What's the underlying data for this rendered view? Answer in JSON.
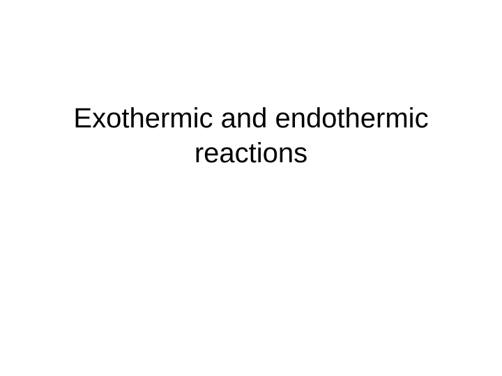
{
  "slide": {
    "title_line1": "Exothermic and endothermic",
    "title_line2": "reactions",
    "title_fontsize": 40,
    "title_color": "#000000",
    "background_color": "#ffffff",
    "font_family": "Arial, Helvetica, sans-serif"
  }
}
